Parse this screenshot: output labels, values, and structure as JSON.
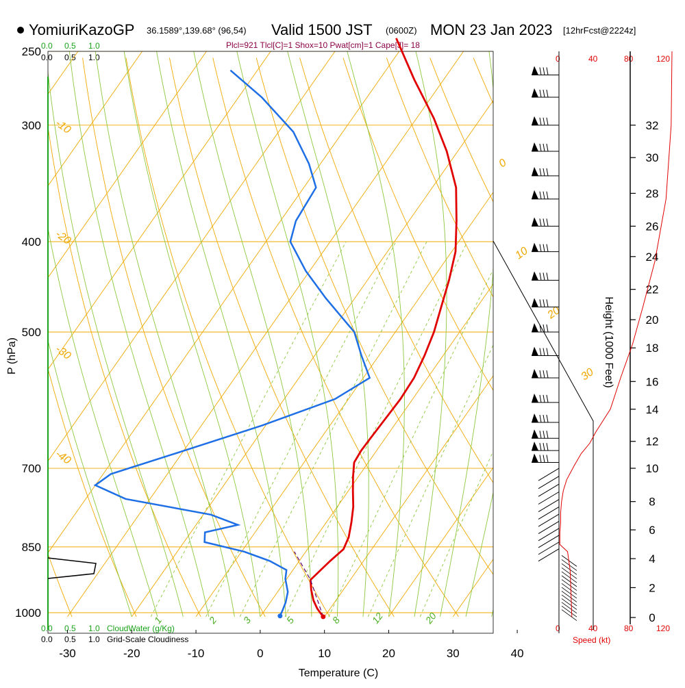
{
  "header": {
    "station": "YomiuriKazoGP",
    "coords": "36.1589°,139.68° (96,54)",
    "valid_prefix": "Valid 1500 JST",
    "valid_utc": "(0600Z)",
    "date": "MON 23 Jan 2023",
    "forecast": "[12hrFcst@2224z]"
  },
  "indices": "Plcl=921 Tlcl[C]=1 Shox=10 Pwat[cm]=1 Cape[J]= 18",
  "cloud_scale": {
    "water_ticks": [
      "0.0",
      "0.5",
      "1.0"
    ],
    "cover_ticks": [
      "0.0",
      "0.5",
      "1.0"
    ],
    "water_label": "CloudWater (g/Kg)",
    "cover_label": "Grid-Scale Cloudiness"
  },
  "speed_scale": {
    "ticks": [
      "0",
      "40",
      "80",
      "120"
    ],
    "label": "Speed (kt)"
  },
  "colors": {
    "temperature": "#e00000",
    "dewpoint": "#1e6fe6",
    "isotherm": "#f0a800",
    "dry_adiabat": "#f0a800",
    "moist_adiabat": "#8cc83c",
    "mixing_ratio": "#8cc83c",
    "cloud": "#1aa31a",
    "speed": "#e00000"
  },
  "chart_data": {
    "type": "line",
    "subtype": "skew-T log-P sounding",
    "xlabel": "Temperature (C)",
    "ylabel": "P (hPa)",
    "y2label": "Height (1000 Feet)",
    "x_ticks": [
      -30,
      -20,
      -10,
      0,
      10,
      20,
      30,
      40
    ],
    "y_ticks": [
      250,
      300,
      400,
      500,
      700,
      850,
      1000
    ],
    "height_ticks": [
      0,
      2,
      4,
      6,
      8,
      10,
      12,
      14,
      16,
      18,
      20,
      22,
      24,
      26,
      28,
      30,
      32
    ],
    "y_scale": "log",
    "xlim": [
      -34,
      36
    ],
    "ylim": [
      1010,
      250
    ],
    "grid": true,
    "isotherm_labels": [
      "0",
      "10",
      "20",
      "30",
      "-10",
      "-20",
      "-30",
      "-40"
    ],
    "mixing_ratio_labels": [
      "1",
      "2",
      "3",
      "5",
      "8",
      "12",
      "20"
    ],
    "series": [
      {
        "name": "Temperature",
        "points": [
          [
            9.8,
            1010
          ],
          [
            8.0,
            990
          ],
          [
            6.5,
            970
          ],
          [
            5.0,
            945
          ],
          [
            3.8,
            922
          ],
          [
            4.8,
            880
          ],
          [
            5.6,
            855
          ],
          [
            5.1,
            830
          ],
          [
            3.9,
            800
          ],
          [
            2.5,
            770
          ],
          [
            0.7,
            740
          ],
          [
            -0.8,
            715
          ],
          [
            -2.2,
            690
          ],
          [
            -2.4,
            670
          ],
          [
            -2.3,
            650
          ],
          [
            -2.1,
            620
          ],
          [
            -1.9,
            590
          ],
          [
            -2.1,
            560
          ],
          [
            -2.9,
            530
          ],
          [
            -4.0,
            500
          ],
          [
            -5.6,
            470
          ],
          [
            -7.3,
            440
          ],
          [
            -9.4,
            410
          ],
          [
            -12.6,
            380
          ],
          [
            -16.3,
            350
          ],
          [
            -21.7,
            320
          ],
          [
            -27.3,
            295
          ],
          [
            -34.6,
            268
          ],
          [
            -41.9,
            242
          ]
        ]
      },
      {
        "name": "Dewpoint",
        "points": [
          [
            3.0,
            1008
          ],
          [
            2.8,
            995
          ],
          [
            2.4,
            975
          ],
          [
            1.6,
            950
          ],
          [
            -0.2,
            920
          ],
          [
            -1.0,
            900
          ],
          [
            -4.6,
            880
          ],
          [
            -9.6,
            860
          ],
          [
            -16.8,
            840
          ],
          [
            -17.8,
            820
          ],
          [
            -13.5,
            805
          ],
          [
            -18.8,
            785
          ],
          [
            -33.8,
            755
          ],
          [
            -40.0,
            730
          ],
          [
            -38.8,
            710
          ],
          [
            -29.9,
            670
          ],
          [
            -20.6,
            630
          ],
          [
            -12.1,
            590
          ],
          [
            -9.0,
            560
          ],
          [
            -12.7,
            530
          ],
          [
            -16.4,
            500
          ],
          [
            -24.5,
            460
          ],
          [
            -30.6,
            430
          ],
          [
            -36.2,
            400
          ],
          [
            -37.6,
            380
          ],
          [
            -38.1,
            350
          ],
          [
            -41.8,
            330
          ],
          [
            -47.7,
            305
          ],
          [
            -56.4,
            280
          ],
          [
            -64.2,
            262
          ]
        ]
      },
      {
        "name": "Height",
        "points": [
          [
            0,
            1000
          ],
          [
            1,
            970
          ],
          [
            2,
            940
          ],
          [
            3,
            905
          ],
          [
            4,
            875
          ],
          [
            5,
            845
          ],
          [
            6,
            815
          ],
          [
            7,
            785
          ],
          [
            8,
            760
          ],
          [
            9,
            730
          ],
          [
            10,
            700
          ],
          [
            11,
            675
          ],
          [
            12,
            655
          ],
          [
            13,
            630
          ],
          [
            14,
            605
          ],
          [
            15,
            585
          ],
          [
            16,
            565
          ],
          [
            17,
            540
          ],
          [
            18,
            520
          ],
          [
            19,
            505
          ],
          [
            20,
            485
          ],
          [
            21,
            465
          ],
          [
            22,
            450
          ],
          [
            23,
            430
          ],
          [
            24,
            415
          ],
          [
            25,
            400
          ],
          [
            26,
            385
          ],
          [
            27,
            370
          ],
          [
            28,
            355
          ],
          [
            29,
            340
          ],
          [
            30,
            325
          ],
          [
            31,
            315
          ],
          [
            32,
            300
          ]
        ]
      }
    ],
    "wind_speed_profile": [
      [
        15,
        1010
      ],
      [
        14,
        950
      ],
      [
        13,
        900
      ],
      [
        10,
        860
      ],
      [
        1,
        845
      ],
      [
        1,
        820
      ],
      [
        2,
        800
      ],
      [
        2,
        780
      ],
      [
        3,
        760
      ],
      [
        5,
        740
      ],
      [
        9,
        720
      ],
      [
        18,
        695
      ],
      [
        26,
        675
      ],
      [
        36,
        658
      ],
      [
        43,
        640
      ],
      [
        60,
        605
      ],
      [
        72,
        560
      ],
      [
        86,
        515
      ],
      [
        98,
        470
      ],
      [
        112,
        420
      ],
      [
        125,
        360
      ],
      [
        131,
        300
      ],
      [
        132,
        250
      ]
    ]
  }
}
